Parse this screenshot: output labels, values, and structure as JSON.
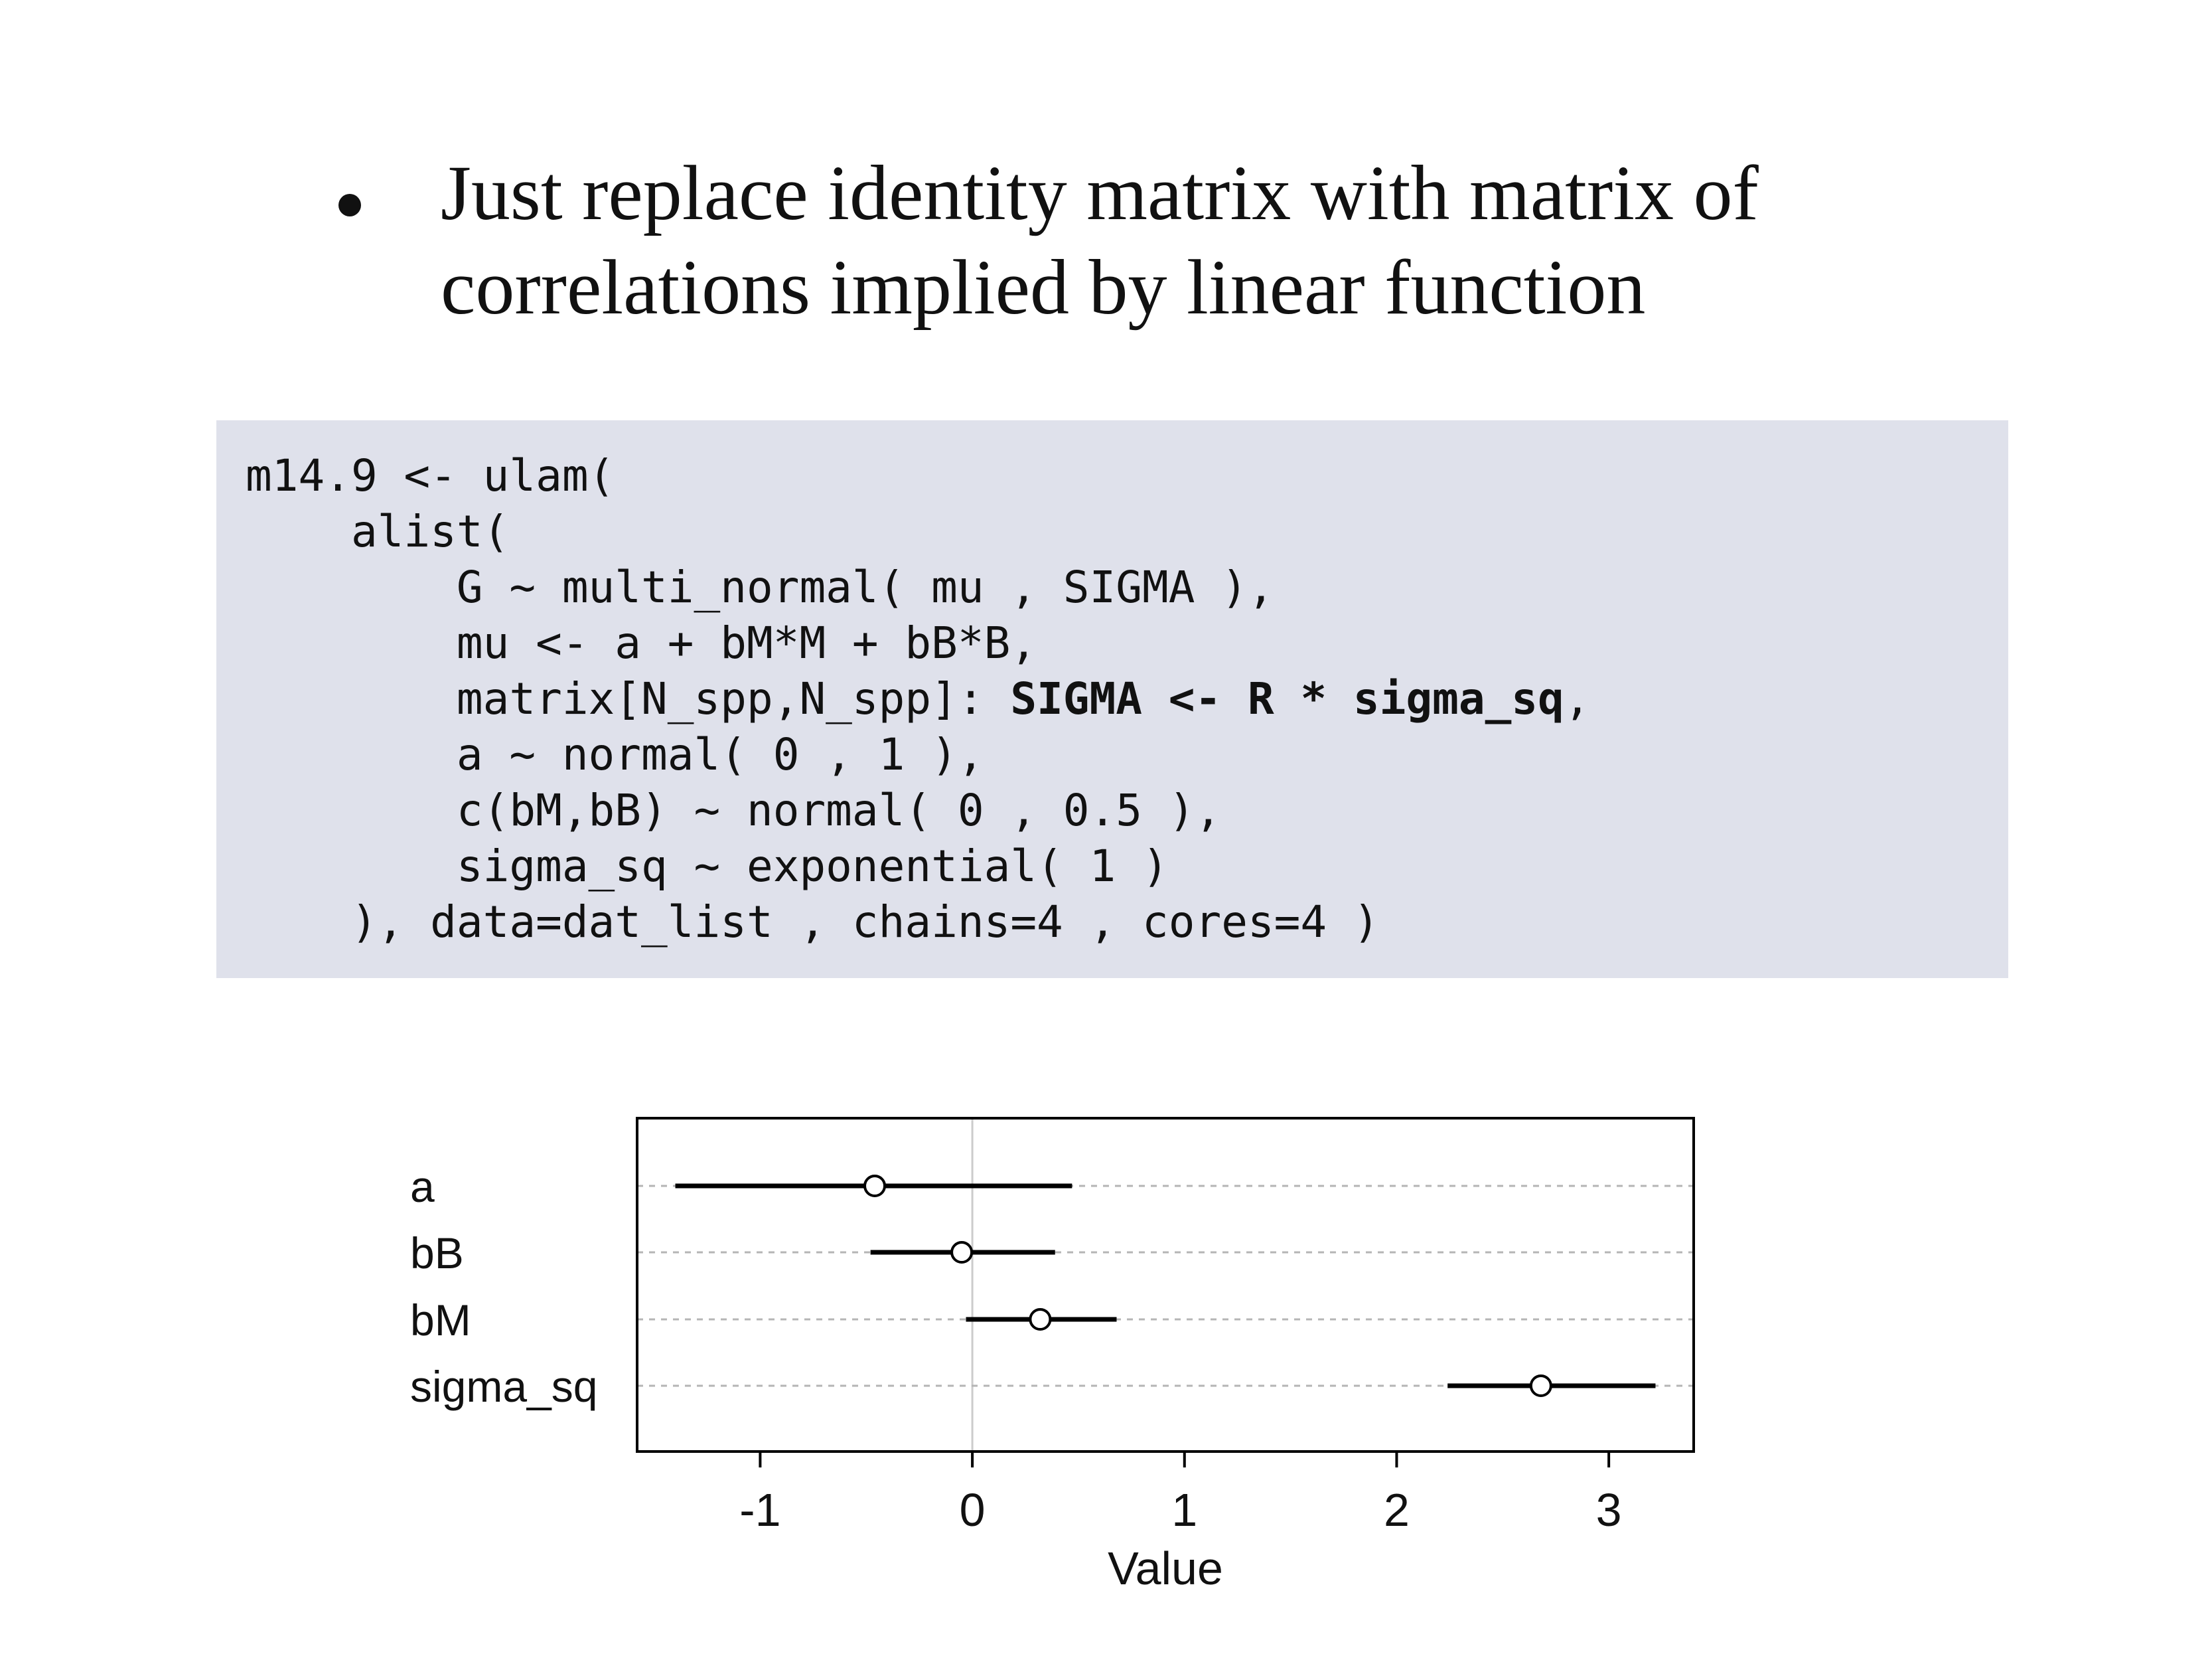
{
  "slide": {
    "bullet_text": "Just replace identity matrix with matrix of correlations implied by linear function"
  },
  "code": {
    "lines": [
      {
        "pre": "m14.9 <- ulam(",
        "bold": "",
        "post": ""
      },
      {
        "pre": "    alist(",
        "bold": "",
        "post": ""
      },
      {
        "pre": "        G ~ multi_normal( mu , SIGMA ),",
        "bold": "",
        "post": ""
      },
      {
        "pre": "        mu <- a + bM*M + bB*B,",
        "bold": "",
        "post": ""
      },
      {
        "pre": "        matrix[N_spp,N_spp]: ",
        "bold": "SIGMA <- R * sigma_sq",
        "post": ","
      },
      {
        "pre": "        a ~ normal( 0 , 1 ),",
        "bold": "",
        "post": ""
      },
      {
        "pre": "        c(bM,bB) ~ normal( 0 , 0.5 ),",
        "bold": "",
        "post": ""
      },
      {
        "pre": "        sigma_sq ~ exponential( 1 )",
        "bold": "",
        "post": ""
      },
      {
        "pre": "    ), data=dat_list , chains=4 , cores=4 )",
        "bold": "",
        "post": ""
      }
    ]
  },
  "chart_data": {
    "type": "scatter",
    "xlabel": "Value",
    "ylabel": "",
    "xlim": [
      -1.58,
      3.4
    ],
    "xticks": [
      -1,
      0,
      1,
      2,
      3
    ],
    "xtick_labels": [
      "-1",
      "0",
      "1",
      "2",
      "3"
    ],
    "zero_line": 0,
    "params": [
      {
        "name": "a",
        "mean": -0.46,
        "lower": -1.4,
        "upper": 0.47
      },
      {
        "name": "bB",
        "mean": -0.05,
        "lower": -0.48,
        "upper": 0.39
      },
      {
        "name": "bM",
        "mean": 0.32,
        "lower": -0.03,
        "upper": 0.68
      },
      {
        "name": "sigma_sq",
        "mean": 2.68,
        "lower": 2.24,
        "upper": 3.22
      }
    ]
  }
}
